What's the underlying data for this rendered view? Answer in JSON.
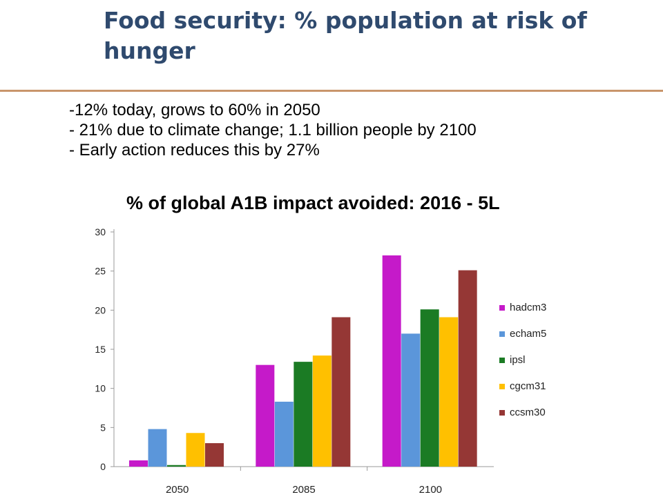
{
  "slide": {
    "title": "Food security: % population at risk of hunger",
    "bullets": [
      "-12% today, grows to 60% in 2050",
      "- 21% due to climate change; 1.1 billion people by 2100",
      "- Early action reduces this by 27%"
    ]
  },
  "chart_data": {
    "type": "bar",
    "title": "% of global A1B impact avoided: 2016 - 5L",
    "xlabel": "",
    "ylabel": "",
    "categories": [
      "2050",
      "2085",
      "2100"
    ],
    "ylim": [
      0,
      30
    ],
    "yticks": [
      "0",
      "5",
      "10",
      "15",
      "20",
      "25",
      "30"
    ],
    "grid": false,
    "legend_position": "right",
    "series": [
      {
        "name": "hadcm3",
        "color": "#c51ac9",
        "values": [
          0.8,
          13,
          27
        ]
      },
      {
        "name": "echam5",
        "color": "#5b96da",
        "values": [
          4.8,
          8.3,
          17
        ]
      },
      {
        "name": "ipsl",
        "color": "#1b7b24",
        "values": [
          0.2,
          13.4,
          20.1
        ]
      },
      {
        "name": "cgcm31",
        "color": "#ffc000",
        "values": [
          4.3,
          14.2,
          19.1
        ]
      },
      {
        "name": "ccsm30",
        "color": "#953735",
        "values": [
          3.0,
          19.1,
          25.1
        ]
      }
    ]
  }
}
